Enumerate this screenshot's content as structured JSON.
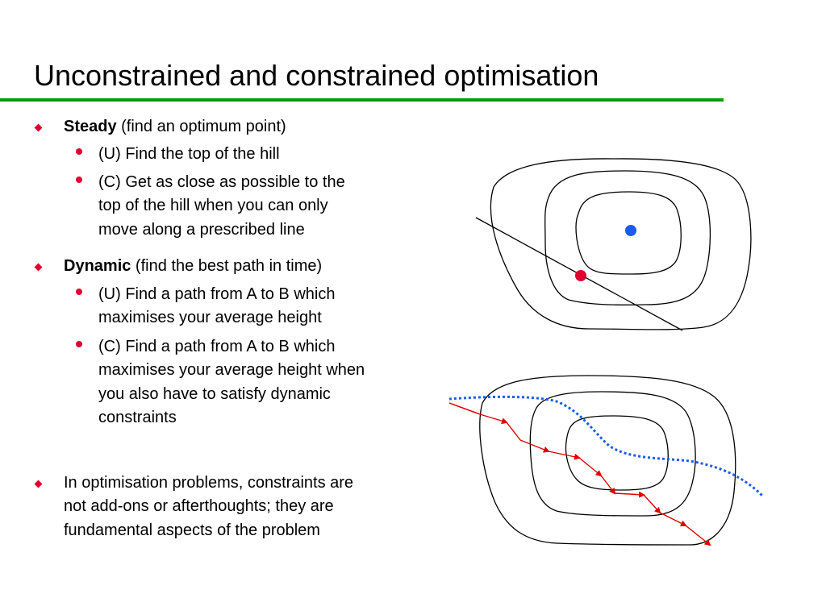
{
  "title": "Unconstrained and constrained optimisation",
  "colors": {
    "rule": "#00a000",
    "bullet": "#e00030",
    "optimum_dot": "#1a5cf0",
    "constrained_dot": "#e00030",
    "path_red": "#e00000",
    "path_blue": "#1a5cf0"
  },
  "bullets": {
    "steady": {
      "bold": "Steady",
      "rest": " (find an optimum point)",
      "sub": [
        [
          "(U)  Find the top of the hill"
        ],
        [
          "(C)  Get as close as possible to the",
          "top of the hill when you can only",
          "move along a prescribed line"
        ]
      ]
    },
    "dynamic": {
      "bold": "Dynamic",
      "rest": " (find the best path in time)",
      "sub": [
        [
          "(U)  Find a path from A to B which",
          "maximises your average height"
        ],
        [
          "(C)  Find a path from A to B which",
          "maximises your average height when",
          "you also have to satisfy dynamic",
          "constraints"
        ]
      ]
    },
    "conclusion": [
      "In optimisation problems, constraints are",
      "not add-ons or afterthoughts; they are",
      "fundamental aspects of the problem"
    ]
  }
}
